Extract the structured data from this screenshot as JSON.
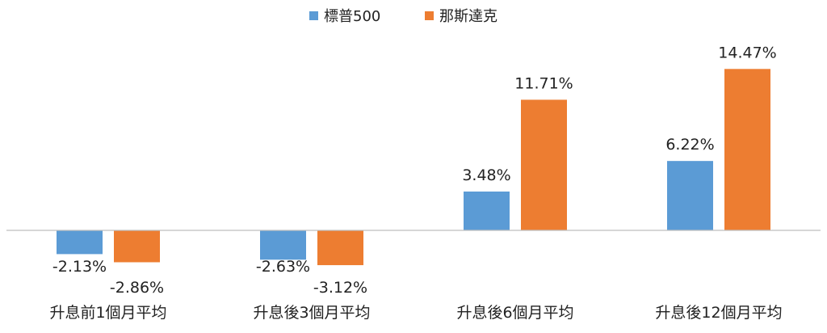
{
  "chart_data": {
    "type": "bar",
    "categories": [
      "升息前1個月平均",
      "升息後3個月平均",
      "升息後6個月平均",
      "升息後12個月平均"
    ],
    "series": [
      {
        "name": "標普500",
        "color": "#5B9BD5",
        "values": [
          -2.13,
          -2.63,
          3.48,
          6.22
        ]
      },
      {
        "name": "那斯達克",
        "color": "#ED7D31",
        "values": [
          -2.86,
          -3.12,
          11.71,
          14.47
        ]
      }
    ],
    "value_labels": [
      [
        "-2.13%",
        "-2.63%",
        "3.48%",
        "6.22%"
      ],
      [
        "-2.86%",
        "-3.12%",
        "11.71%",
        "14.47%"
      ]
    ],
    "title": "",
    "xlabel": "",
    "ylabel": "",
    "ylim": [
      -4,
      16
    ],
    "grid": false,
    "legend_position": "top-center"
  }
}
